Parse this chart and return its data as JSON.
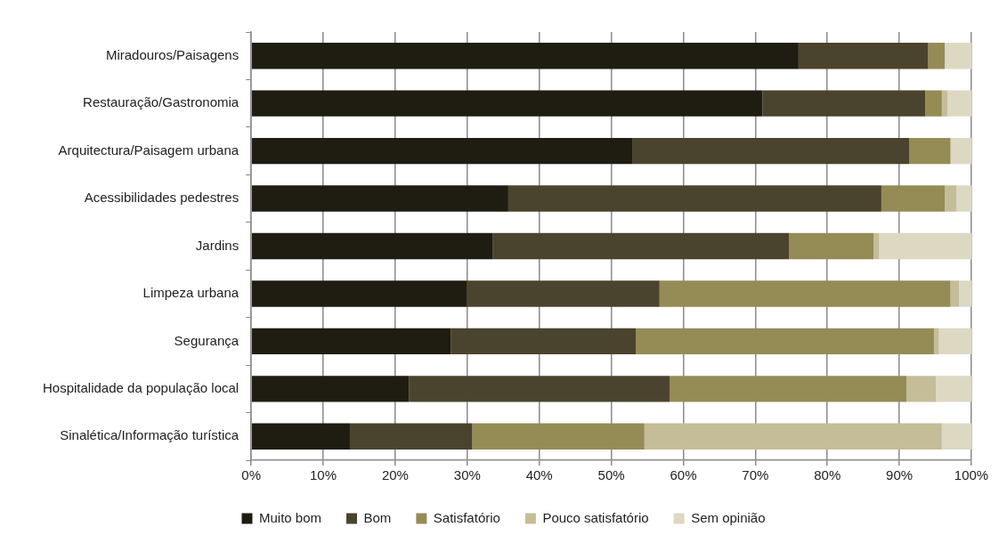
{
  "chart_data": {
    "type": "bar",
    "orientation": "horizontal",
    "stacked": true,
    "grid": "x",
    "legend": "bottom",
    "categories": [
      "Miradouros/Paisagens",
      "Restauração/Gastronomia",
      "Arquitectura/Paisagem urbana",
      "Acessibilidades pedestres",
      "Jardins",
      "Limpeza urbana",
      "Segurança",
      "Hospitalidade da população local",
      "Sinalética/Informação turística"
    ],
    "series": [
      {
        "name": "Muito bom",
        "color": "#1f1d12",
        "values": [
          76,
          71,
          52.9,
          35.7,
          33.5,
          29.9,
          27.7,
          21.9,
          13.7
        ]
      },
      {
        "name": "Bom",
        "color": "#4a442e",
        "values": [
          18,
          22.6,
          38.5,
          51.8,
          41.2,
          26.8,
          25.7,
          36.2,
          17
        ]
      },
      {
        "name": "Satisfatório",
        "color": "#958b55",
        "values": [
          2.3,
          2.3,
          5.7,
          8.8,
          11.7,
          40.4,
          41.4,
          32.9,
          23.9
        ]
      },
      {
        "name": "Pouco satisfatório",
        "color": "#c5bd98",
        "values": [
          0,
          0.8,
          0,
          1.6,
          0.8,
          1.2,
          0.7,
          4.1,
          41.3
        ]
      },
      {
        "name": "Sem opinião",
        "color": "#ddd8c2",
        "values": [
          3.7,
          3.3,
          2.9,
          2.1,
          12.8,
          1.7,
          4.5,
          4.9,
          4.1
        ]
      }
    ],
    "xlim": [
      0,
      100
    ],
    "xticks": [
      {
        "value": 0,
        "label": "0%"
      },
      {
        "value": 10,
        "label": "10%"
      },
      {
        "value": 20,
        "label": "20%"
      },
      {
        "value": 30,
        "label": "30%"
      },
      {
        "value": 40,
        "label": "40%"
      },
      {
        "value": 50,
        "label": "50%"
      },
      {
        "value": 60,
        "label": "60%"
      },
      {
        "value": 70,
        "label": "70%"
      },
      {
        "value": 80,
        "label": "80%"
      },
      {
        "value": 90,
        "label": "90%"
      },
      {
        "value": 100,
        "label": "100%"
      }
    ]
  }
}
